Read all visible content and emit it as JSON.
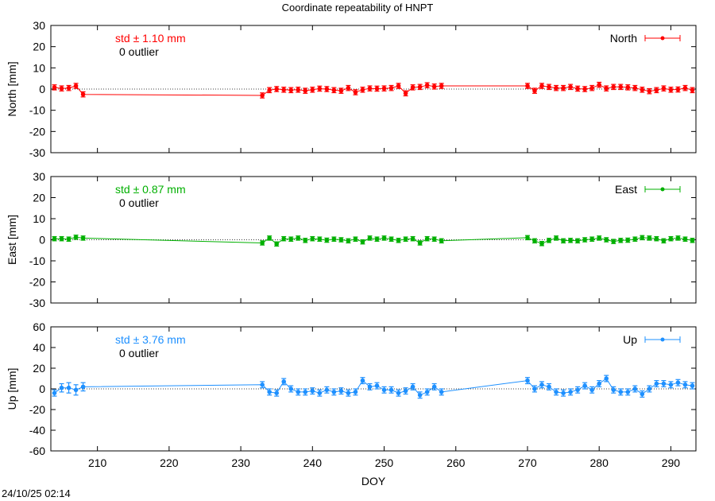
{
  "title": "Coordinate repeatability of HNPT",
  "timestamp": "24/10/25 02:14",
  "xlabel": "DOY",
  "x_ticks": [
    210,
    220,
    230,
    240,
    250,
    260,
    270,
    280,
    290
  ],
  "xlim": [
    203.5,
    293.5
  ],
  "chart_data": [
    {
      "type": "line",
      "name": "North",
      "ylabel": "North [mm]",
      "ylim": [
        -30,
        30
      ],
      "y_ticks": [
        30,
        20,
        10,
        0,
        -10,
        -20,
        -30
      ],
      "color": "#ff0000",
      "std_text": "std ± 1.10 mm",
      "outlier_text": "0 outlier",
      "grid": false,
      "zero_line": true,
      "legend": "top-right",
      "x": [
        204,
        205,
        206,
        207,
        208,
        233,
        234,
        235,
        236,
        237,
        238,
        239,
        240,
        241,
        242,
        243,
        244,
        245,
        246,
        247,
        248,
        249,
        250,
        251,
        252,
        253,
        254,
        255,
        256,
        257,
        258,
        270,
        271,
        272,
        273,
        274,
        275,
        276,
        277,
        278,
        279,
        280,
        281,
        282,
        283,
        284,
        285,
        286,
        287,
        288,
        289,
        290,
        291,
        292,
        293
      ],
      "y": [
        0.8,
        0.3,
        0.5,
        1.5,
        -2.5,
        -3.0,
        -0.5,
        0.0,
        -0.3,
        -0.5,
        -0.3,
        -0.8,
        -0.3,
        0.2,
        0.0,
        -0.5,
        -0.8,
        0.5,
        -1.5,
        -0.3,
        0.3,
        0.2,
        0.3,
        0.5,
        1.5,
        -2.0,
        0.8,
        1.0,
        1.8,
        1.2,
        1.5,
        1.5,
        -0.8,
        1.5,
        1.0,
        0.5,
        0.5,
        1.0,
        0.2,
        0.0,
        0.5,
        2.0,
        0.3,
        1.0,
        1.0,
        0.8,
        0.5,
        -0.3,
        -1.0,
        -0.5,
        0.3,
        -0.3,
        -0.2,
        0.5,
        -0.5
      ],
      "err": [
        1.2,
        1.2,
        1.2,
        1.2,
        1.2,
        1.2,
        1.2,
        1.2,
        1.2,
        1.2,
        1.2,
        1.2,
        1.2,
        1.2,
        1.2,
        1.2,
        1.2,
        1.2,
        1.2,
        1.2,
        1.2,
        1.2,
        1.2,
        1.2,
        1.2,
        1.2,
        1.2,
        1.2,
        1.2,
        1.2,
        1.2,
        1.2,
        1.2,
        1.2,
        1.2,
        1.2,
        1.2,
        1.2,
        1.2,
        1.2,
        1.2,
        1.2,
        1.2,
        1.2,
        1.2,
        1.2,
        1.2,
        1.2,
        1.2,
        1.2,
        1.2,
        1.2,
        1.2,
        1.2,
        1.2
      ]
    },
    {
      "type": "line",
      "name": "East",
      "ylabel": "East [mm]",
      "ylim": [
        -30,
        30
      ],
      "y_ticks": [
        30,
        20,
        10,
        0,
        -10,
        -20,
        -30
      ],
      "color": "#00b000",
      "std_text": "std ± 0.87 mm",
      "outlier_text": "0 outlier",
      "grid": false,
      "zero_line": true,
      "legend": "top-right",
      "x": [
        204,
        205,
        206,
        207,
        208,
        233,
        234,
        235,
        236,
        237,
        238,
        239,
        240,
        241,
        242,
        243,
        244,
        245,
        246,
        247,
        248,
        249,
        250,
        251,
        252,
        253,
        254,
        255,
        256,
        257,
        258,
        270,
        271,
        272,
        273,
        274,
        275,
        276,
        277,
        278,
        279,
        280,
        281,
        282,
        283,
        284,
        285,
        286,
        287,
        288,
        289,
        290,
        291,
        292,
        293
      ],
      "y": [
        0.5,
        0.5,
        0.3,
        1.2,
        0.8,
        -1.5,
        0.8,
        -2.0,
        0.5,
        0.3,
        0.8,
        -0.3,
        0.5,
        0.3,
        -0.2,
        0.3,
        0.0,
        -0.5,
        0.3,
        -1.0,
        0.8,
        0.3,
        0.8,
        0.3,
        -0.3,
        0.3,
        0.5,
        -1.5,
        0.5,
        0.3,
        -0.5,
        1.0,
        -0.5,
        -1.8,
        -0.3,
        0.8,
        -0.5,
        -0.3,
        -0.5,
        0.0,
        0.3,
        0.8,
        0.0,
        -0.8,
        -0.3,
        -0.2,
        0.3,
        1.0,
        0.8,
        0.5,
        -0.5,
        0.5,
        0.8,
        0.3,
        -0.3
      ],
      "err": [
        1.0,
        1.0,
        1.0,
        1.0,
        1.0,
        1.0,
        1.0,
        1.0,
        1.0,
        1.0,
        1.0,
        1.0,
        1.0,
        1.0,
        1.0,
        1.0,
        1.0,
        1.0,
        1.0,
        1.0,
        1.0,
        1.0,
        1.0,
        1.0,
        1.0,
        1.0,
        1.0,
        1.0,
        1.0,
        1.0,
        1.0,
        1.0,
        1.0,
        1.0,
        1.0,
        1.0,
        1.0,
        1.0,
        1.0,
        1.0,
        1.0,
        1.0,
        1.0,
        1.0,
        1.0,
        1.0,
        1.0,
        1.0,
        1.0,
        1.0,
        1.0,
        1.0,
        1.0,
        1.0,
        1.0
      ]
    },
    {
      "type": "line",
      "name": "Up",
      "ylabel": "Up [mm]",
      "ylim": [
        -60,
        60
      ],
      "y_ticks": [
        60,
        40,
        20,
        0,
        -20,
        -40,
        -60
      ],
      "color": "#1e90ff",
      "std_text": "std ± 3.76 mm",
      "outlier_text": "0 outlier",
      "grid": false,
      "zero_line": true,
      "legend": "top-right",
      "x": [
        204,
        205,
        206,
        207,
        208,
        233,
        234,
        235,
        236,
        237,
        238,
        239,
        240,
        241,
        242,
        243,
        244,
        245,
        246,
        247,
        248,
        249,
        250,
        251,
        252,
        253,
        254,
        255,
        256,
        257,
        258,
        270,
        271,
        272,
        273,
        274,
        275,
        276,
        277,
        278,
        279,
        280,
        281,
        282,
        283,
        284,
        285,
        286,
        287,
        288,
        289,
        290,
        291,
        292,
        293
      ],
      "y": [
        -4,
        1,
        1,
        -1,
        2,
        4,
        -3,
        -4,
        7,
        0,
        -3,
        -3,
        -2,
        -4,
        -1,
        -3,
        -2,
        -4,
        -3,
        8,
        2,
        3,
        -1,
        -1,
        -4,
        -2,
        2,
        -6,
        -3,
        2,
        -3,
        8,
        0,
        4,
        2,
        -3,
        -4,
        -3,
        -1,
        3,
        -1,
        5,
        10,
        -1,
        -3,
        -3,
        0,
        -5,
        0,
        5,
        5,
        4,
        6,
        4,
        3
      ],
      "err": [
        3,
        4,
        5,
        5,
        4,
        3,
        3,
        3,
        3,
        3,
        3,
        3,
        3,
        3,
        3,
        3,
        3,
        3,
        3,
        3,
        3,
        3,
        3,
        3,
        3,
        3,
        3,
        3,
        3,
        3,
        3,
        3,
        3,
        3,
        3,
        3,
        3,
        3,
        3,
        3,
        3,
        3,
        3,
        3,
        3,
        3,
        3,
        3,
        3,
        3,
        3,
        3,
        3,
        3,
        3
      ]
    }
  ]
}
